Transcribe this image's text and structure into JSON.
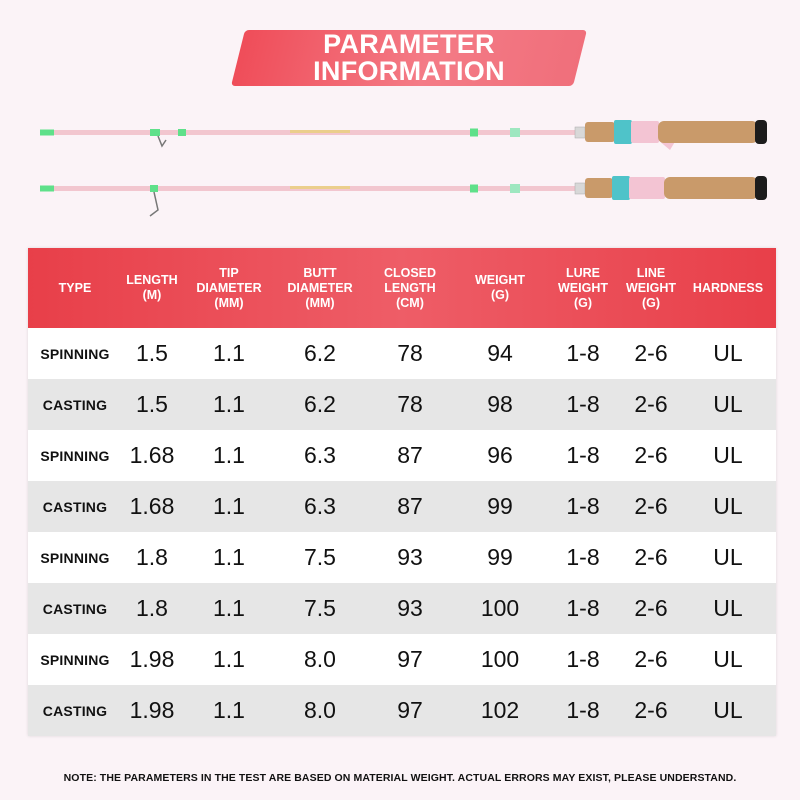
{
  "banner": {
    "line1": "PARAMETER",
    "line2": "INFORMATION"
  },
  "table": {
    "headers": [
      "TYPE",
      "LENGTH\n(M)",
      "TIP\nDIAMETER\n(MM)",
      "BUTT\nDIAMETER\n(MM)",
      "CLOSED\nLENGTH\n(CM)",
      "WEIGHT\n(G)",
      "LURE\nWEIGHT\n(G)",
      "LINE\nWEIGHT\n(G)",
      "HARDNESS"
    ],
    "rows": [
      [
        "SPINNING",
        "1.5",
        "1.1",
        "6.2",
        "78",
        "94",
        "1-8",
        "2-6",
        "UL"
      ],
      [
        "CASTING",
        "1.5",
        "1.1",
        "6.2",
        "78",
        "98",
        "1-8",
        "2-6",
        "UL"
      ],
      [
        "SPINNING",
        "1.68",
        "1.1",
        "6.3",
        "87",
        "96",
        "1-8",
        "2-6",
        "UL"
      ],
      [
        "CASTING",
        "1.68",
        "1.1",
        "6.3",
        "87",
        "99",
        "1-8",
        "2-6",
        "UL"
      ],
      [
        "SPINNING",
        "1.8",
        "1.1",
        "7.5",
        "93",
        "99",
        "1-8",
        "2-6",
        "UL"
      ],
      [
        "CASTING",
        "1.8",
        "1.1",
        "7.5",
        "93",
        "100",
        "1-8",
        "2-6",
        "UL"
      ],
      [
        "SPINNING",
        "1.98",
        "1.1",
        "8.0",
        "97",
        "100",
        "1-8",
        "2-6",
        "UL"
      ],
      [
        "CASTING",
        "1.98",
        "1.1",
        "8.0",
        "97",
        "102",
        "1-8",
        "2-6",
        "UL"
      ]
    ]
  },
  "note": "NOTE: THE PARAMETERS IN THE TEST ARE BASED ON MATERIAL WEIGHT. ACTUAL ERRORS MAY EXIST, PLEASE UNDERSTAND.",
  "colors": {
    "accent": "#e83f49",
    "rod_pink": "#f2c6cf",
    "guide_green": "#5fe08a",
    "cork": "#c99a6a"
  },
  "rods": [
    "casting-rod-image",
    "spinning-rod-image"
  ]
}
